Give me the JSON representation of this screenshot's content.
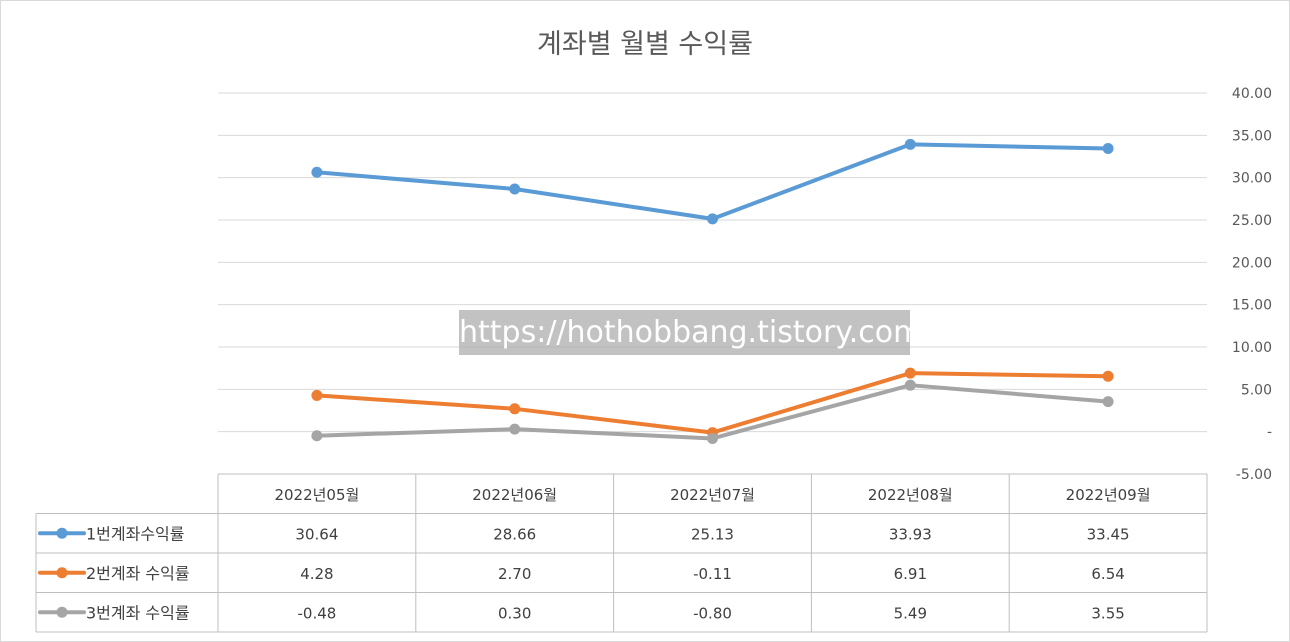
{
  "chart_data": {
    "type": "line",
    "title": "계좌별 월별 수익률",
    "categories": [
      "2022년05월",
      "2022년06월",
      "2022년07월",
      "2022년08월",
      "2022년09월"
    ],
    "series": [
      {
        "name": "1번계좌수익률",
        "color": "#5b9bd5",
        "values": [
          30.64,
          28.66,
          25.13,
          33.93,
          33.45
        ],
        "labels": [
          "30.64",
          "28.66",
          "25.13",
          "33.93",
          "33.45"
        ]
      },
      {
        "name": "2번계좌 수익률",
        "color": "#ed7d31",
        "values": [
          4.28,
          2.7,
          -0.11,
          6.91,
          6.54
        ],
        "labels": [
          "4.28",
          "2.70",
          "-0.11",
          "6.91",
          "6.54"
        ]
      },
      {
        "name": "3번계좌 수익률",
        "color": "#a5a5a5",
        "values": [
          -0.48,
          0.3,
          -0.8,
          5.49,
          3.55
        ],
        "labels": [
          "-0.48",
          "0.30",
          "-0.80",
          "5.49",
          "3.55"
        ]
      }
    ],
    "ylim": [
      -5,
      40
    ],
    "y_axis_position": "right",
    "yticks": [
      {
        "value": 40,
        "label": "40.00"
      },
      {
        "value": 35,
        "label": "35.00"
      },
      {
        "value": 30,
        "label": "30.00"
      },
      {
        "value": 25,
        "label": "25.00"
      },
      {
        "value": 20,
        "label": "20.00"
      },
      {
        "value": 15,
        "label": "15.00"
      },
      {
        "value": 10,
        "label": "10.00"
      },
      {
        "value": 5,
        "label": "5.00"
      },
      {
        "value": 0,
        "label": "-"
      },
      {
        "value": -5,
        "label": "-5.00"
      }
    ],
    "grid": true,
    "legend": "data-table-left"
  },
  "watermark": "https://hothobbang.tistory.com"
}
